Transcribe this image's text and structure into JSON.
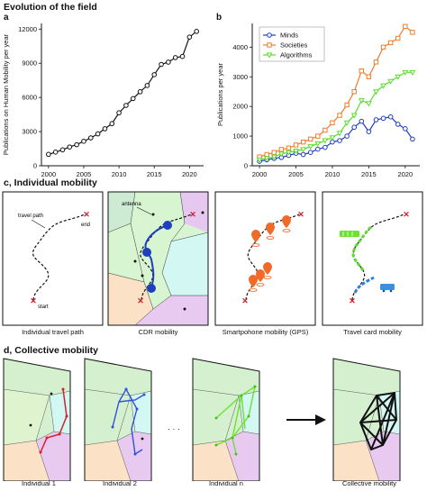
{
  "figure_title": "Evolution of the field",
  "panel_a": {
    "label": "a"
  },
  "panel_b": {
    "label": "b"
  },
  "panel_c": {
    "label": "c, Individual mobility",
    "subpanels": [
      {
        "caption": "Individual travel path",
        "annotations": [
          "travel path",
          "end",
          "start"
        ]
      },
      {
        "caption": "CDR mobility",
        "annotations": [
          "antenna"
        ]
      },
      {
        "caption": "Smartpohone mobility (GPS)"
      },
      {
        "caption": "Travel card mobility"
      }
    ]
  },
  "panel_d": {
    "label": "d, Collective mobility",
    "captions": [
      "Individual 1",
      "Individual 2",
      "Individual n",
      "Collective mobility"
    ],
    "ellipsis": "· · ·"
  },
  "colors": {
    "minds": "#1f3fbf",
    "societies": "#f07d2a",
    "algorithms": "#5ddc2a",
    "path_red": "#d81e2b",
    "path_blue": "#3050e0",
    "path_green": "#6be22f"
  },
  "chart_data": [
    {
      "type": "line",
      "ylabel": "Publications on Human Mobility per year",
      "xlim": [
        1999,
        2022
      ],
      "ylim": [
        0,
        12500
      ],
      "xticks": [
        2000,
        2005,
        2010,
        2015,
        2020
      ],
      "yticks": [
        0,
        3000,
        6000,
        9000,
        12000
      ],
      "grid": false,
      "series": [
        {
          "x": [
            2000,
            2001,
            2002,
            2003,
            2004,
            2005,
            2006,
            2007,
            2008,
            2009,
            2010,
            2011,
            2012,
            2013,
            2014,
            2015,
            2016,
            2017,
            2018,
            2019,
            2020,
            2021
          ],
          "values": [
            1000,
            1200,
            1400,
            1650,
            1850,
            2150,
            2450,
            2800,
            3250,
            3700,
            4650,
            5300,
            5900,
            6500,
            7050,
            8000,
            8900,
            9100,
            9500,
            9600,
            11300,
            11800
          ]
        }
      ]
    },
    {
      "type": "line",
      "ylabel": "Publications per year",
      "xlim": [
        1999,
        2022
      ],
      "ylim": [
        0,
        4800
      ],
      "xticks": [
        2000,
        2005,
        2010,
        2015,
        2020
      ],
      "yticks": [
        0,
        1000,
        2000,
        3000,
        4000
      ],
      "grid": false,
      "legend": "top-left",
      "series": [
        {
          "name": "Minds",
          "x": [
            2000,
            2001,
            2002,
            2003,
            2004,
            2005,
            2006,
            2007,
            2008,
            2009,
            2010,
            2011,
            2012,
            2013,
            2014,
            2015,
            2016,
            2017,
            2018,
            2019,
            2020,
            2021
          ],
          "values": [
            150,
            200,
            250,
            280,
            350,
            420,
            380,
            450,
            560,
            620,
            800,
            850,
            1000,
            1300,
            1500,
            1150,
            1550,
            1600,
            1650,
            1400,
            1250,
            900
          ]
        },
        {
          "name": "Societies",
          "x": [
            2000,
            2001,
            2002,
            2003,
            2004,
            2005,
            2006,
            2007,
            2008,
            2009,
            2010,
            2011,
            2012,
            2013,
            2014,
            2015,
            2016,
            2017,
            2018,
            2019,
            2020,
            2021
          ],
          "values": [
            300,
            380,
            450,
            550,
            600,
            700,
            800,
            900,
            1000,
            1200,
            1450,
            1700,
            2050,
            2500,
            3200,
            3000,
            3500,
            4000,
            4150,
            4300,
            4700,
            4500
          ]
        },
        {
          "name": "Algorithms",
          "x": [
            2000,
            2001,
            2002,
            2003,
            2004,
            2005,
            2006,
            2007,
            2008,
            2009,
            2010,
            2011,
            2012,
            2013,
            2014,
            2015,
            2016,
            2017,
            2018,
            2019,
            2020,
            2021
          ],
          "values": [
            200,
            250,
            300,
            400,
            450,
            500,
            550,
            650,
            750,
            850,
            950,
            1100,
            1450,
            1700,
            2200,
            2100,
            2500,
            2700,
            2850,
            3000,
            3150,
            3150
          ]
        }
      ]
    }
  ]
}
